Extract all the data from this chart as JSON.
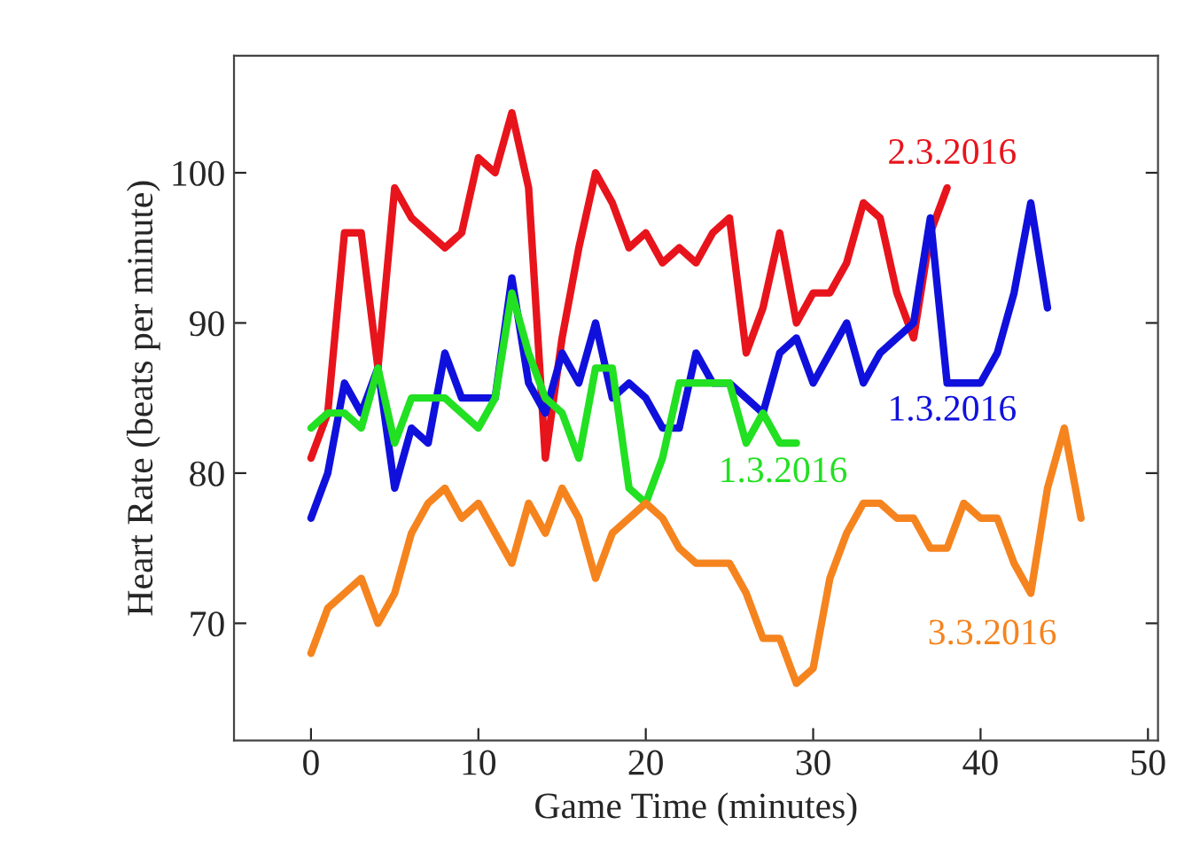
{
  "chart_data": {
    "type": "line",
    "xlabel": "Game Time (minutes)",
    "ylabel": "Heart Rate (beats per minute)",
    "xlim": [
      -4.6,
      50.6
    ],
    "ylim": [
      62.2,
      107.8
    ],
    "xticks": [
      0,
      10,
      20,
      30,
      40,
      50
    ],
    "yticks": [
      70,
      80,
      90,
      100
    ],
    "grid": false,
    "legend": false,
    "marker": "none",
    "line_style": "solid",
    "series": [
      {
        "name": "2.3.2016",
        "color": "#e8141c",
        "x": [
          0,
          1,
          2,
          3,
          4,
          5,
          6,
          7,
          8,
          9,
          10,
          11,
          12,
          13,
          14,
          15,
          16,
          17,
          18,
          19,
          20,
          21,
          22,
          23,
          24,
          25,
          26,
          27,
          28,
          29,
          30,
          31,
          32,
          33,
          34,
          35,
          36,
          37,
          38
        ],
        "values": [
          81,
          84,
          96,
          96,
          87,
          99,
          97,
          96,
          95,
          96,
          101,
          100,
          104,
          99,
          81,
          89,
          95,
          100,
          98,
          95,
          96,
          94,
          95,
          94,
          96,
          97,
          88,
          91,
          96,
          90,
          92,
          92,
          94,
          98,
          97,
          92,
          89,
          96,
          99
        ]
      },
      {
        "name": "1.3.2016",
        "color": "#1010dd",
        "x": [
          0,
          1,
          2,
          3,
          4,
          5,
          6,
          7,
          8,
          9,
          10,
          11,
          12,
          13,
          14,
          15,
          16,
          17,
          18,
          19,
          20,
          21,
          22,
          23,
          24,
          25,
          26,
          27,
          28,
          29,
          30,
          31,
          32,
          33,
          34,
          35,
          36,
          37,
          38,
          39,
          40,
          41,
          42,
          43,
          44
        ],
        "values": [
          77,
          80,
          86,
          84,
          87,
          79,
          83,
          82,
          88,
          85,
          85,
          85,
          93,
          86,
          84,
          88,
          86,
          90,
          85,
          86,
          85,
          83,
          83,
          88,
          86,
          86,
          85,
          84,
          88,
          89,
          86,
          88,
          90,
          86,
          88,
          89,
          90,
          97,
          86,
          86,
          86,
          88,
          92,
          98,
          91
        ]
      },
      {
        "name": "1.3.2016",
        "color": "#22e022",
        "x": [
          0,
          1,
          2,
          3,
          4,
          5,
          6,
          7,
          8,
          9,
          10,
          11,
          12,
          13,
          14,
          15,
          16,
          17,
          18,
          19,
          20,
          21,
          22,
          23,
          24,
          25,
          26,
          27,
          28,
          29
        ],
        "values": [
          83,
          84,
          84,
          83,
          87,
          82,
          85,
          85,
          85,
          84,
          83,
          85,
          92,
          88,
          85,
          84,
          81,
          87,
          87,
          79,
          78,
          81,
          86,
          86,
          86,
          86,
          82,
          84,
          82,
          82
        ]
      },
      {
        "name": "3.3.2016",
        "color": "#f5841f",
        "x": [
          0,
          1,
          2,
          3,
          4,
          5,
          6,
          7,
          8,
          9,
          10,
          11,
          12,
          13,
          14,
          15,
          16,
          17,
          18,
          19,
          20,
          21,
          22,
          23,
          24,
          25,
          26,
          27,
          28,
          29,
          30,
          31,
          32,
          33,
          34,
          35,
          36,
          37,
          38,
          39,
          40,
          41,
          42,
          43,
          44,
          45,
          46
        ],
        "values": [
          68,
          71,
          72,
          73,
          70,
          72,
          76,
          78,
          79,
          77,
          78,
          76,
          74,
          78,
          76,
          79,
          77,
          73,
          76,
          77,
          78,
          77,
          75,
          74,
          74,
          74,
          72,
          69,
          69,
          66,
          67,
          73,
          76,
          78,
          78,
          77,
          77,
          75,
          75,
          78,
          77,
          77,
          74,
          72,
          79,
          83,
          77
        ]
      }
    ]
  }
}
